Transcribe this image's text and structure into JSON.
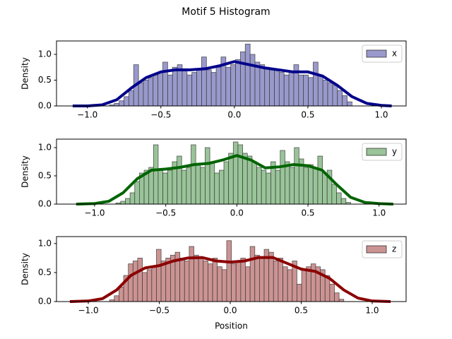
{
  "title": "Motif 5 Histogram",
  "chart_data": [
    {
      "type": "histogram",
      "ylabel": "Density",
      "name": "x",
      "color": "#9999cc",
      "line_color": "#00008b",
      "legend": "upper right",
      "bins": [
        -0.85,
        -0.817,
        -0.784,
        -0.751,
        -0.718,
        -0.685,
        -0.652,
        -0.619,
        -0.586,
        -0.553,
        -0.52,
        -0.487,
        -0.454,
        -0.421,
        -0.388,
        -0.355,
        -0.322,
        -0.289,
        -0.256,
        -0.223,
        -0.19,
        -0.157,
        -0.124,
        -0.091,
        -0.058,
        -0.025,
        0.008,
        0.041,
        0.074,
        0.107,
        0.14,
        0.173,
        0.206,
        0.239,
        0.272,
        0.305,
        0.338,
        0.371,
        0.404,
        0.437,
        0.47,
        0.503,
        0.536,
        0.569,
        0.602,
        0.635,
        0.668,
        0.701,
        0.734,
        0.767,
        0.8
      ],
      "values": [
        0.02,
        0.05,
        0.1,
        0.18,
        0.3,
        0.8,
        0.45,
        0.5,
        0.55,
        0.6,
        0.65,
        0.85,
        0.6,
        0.75,
        0.8,
        0.7,
        0.6,
        0.65,
        0.7,
        0.95,
        0.7,
        0.65,
        0.75,
        0.95,
        0.75,
        0.8,
        0.9,
        1.05,
        1.2,
        1.0,
        0.85,
        0.8,
        0.75,
        0.7,
        0.7,
        0.65,
        0.6,
        0.65,
        0.8,
        0.6,
        0.6,
        0.55,
        0.85,
        0.6,
        0.5,
        0.45,
        0.4,
        0.3,
        0.2,
        0.08
      ],
      "kde": {
        "x": [
          -1.1,
          -1.0,
          -0.9,
          -0.8,
          -0.7,
          -0.6,
          -0.5,
          -0.4,
          -0.3,
          -0.2,
          -0.1,
          0.0,
          0.1,
          0.2,
          0.3,
          0.4,
          0.5,
          0.6,
          0.7,
          0.8,
          0.9,
          1.0,
          1.07
        ],
        "values": [
          0,
          0,
          0.02,
          0.12,
          0.35,
          0.55,
          0.66,
          0.7,
          0.7,
          0.72,
          0.78,
          0.86,
          0.8,
          0.74,
          0.7,
          0.66,
          0.66,
          0.58,
          0.4,
          0.18,
          0.05,
          0.01,
          0
        ]
      },
      "xlim": [
        -1.21,
        1.168
      ],
      "ylim": [
        0,
        1.26
      ],
      "xticks": [
        {
          "value": -1.0,
          "label": "−1.0"
        },
        {
          "value": -0.5,
          "label": "−0.5"
        },
        {
          "value": 0.0,
          "label": "0.0"
        },
        {
          "value": 0.5,
          "label": "0.5"
        },
        {
          "value": 1.0,
          "label": "1.0"
        }
      ],
      "yticks": [
        {
          "value": 0,
          "label": "0.0"
        },
        {
          "value": 0.5,
          "label": "0.5"
        },
        {
          "value": 1.0,
          "label": "1.0"
        }
      ]
    },
    {
      "type": "histogram",
      "ylabel": "Density",
      "name": "y",
      "color": "#99c499",
      "line_color": "#006400",
      "legend": "upper right",
      "bins": [
        -0.85,
        -0.817,
        -0.784,
        -0.751,
        -0.718,
        -0.685,
        -0.652,
        -0.619,
        -0.586,
        -0.553,
        -0.52,
        -0.487,
        -0.454,
        -0.421,
        -0.388,
        -0.355,
        -0.322,
        -0.289,
        -0.256,
        -0.223,
        -0.19,
        -0.157,
        -0.124,
        -0.091,
        -0.058,
        -0.025,
        0.008,
        0.041,
        0.074,
        0.107,
        0.14,
        0.173,
        0.206,
        0.239,
        0.272,
        0.305,
        0.338,
        0.371,
        0.404,
        0.437,
        0.47,
        0.503,
        0.536,
        0.569,
        0.602,
        0.635,
        0.668,
        0.701,
        0.734,
        0.767,
        0.8
      ],
      "values": [
        0.02,
        0.05,
        0.1,
        0.2,
        0.4,
        0.55,
        0.6,
        0.65,
        1.05,
        0.6,
        0.55,
        0.6,
        0.75,
        0.85,
        0.6,
        0.65,
        1.05,
        0.7,
        0.65,
        1.0,
        0.75,
        0.55,
        0.6,
        0.75,
        0.9,
        1.1,
        1.05,
        0.9,
        0.85,
        0.75,
        0.65,
        0.6,
        0.55,
        0.75,
        0.6,
        0.95,
        0.75,
        0.65,
        1.0,
        0.8,
        0.65,
        0.7,
        0.65,
        0.85,
        0.55,
        0.6,
        0.35,
        0.2,
        0.1,
        0.03
      ],
      "kde": {
        "x": [
          -1.13,
          -1.0,
          -0.9,
          -0.8,
          -0.7,
          -0.6,
          -0.5,
          -0.4,
          -0.3,
          -0.2,
          -0.1,
          0.0,
          0.1,
          0.2,
          0.3,
          0.4,
          0.5,
          0.6,
          0.7,
          0.8,
          0.9,
          1.0,
          1.1
        ],
        "values": [
          0,
          0.01,
          0.05,
          0.2,
          0.45,
          0.6,
          0.62,
          0.65,
          0.7,
          0.72,
          0.78,
          0.86,
          0.78,
          0.64,
          0.66,
          0.7,
          0.68,
          0.6,
          0.35,
          0.12,
          0.03,
          0.01,
          0
        ]
      },
      "xlim": [
        -1.268,
        1.19
      ],
      "ylim": [
        0,
        1.15
      ],
      "xticks": [
        {
          "value": -1.0,
          "label": "−1.0"
        },
        {
          "value": -0.5,
          "label": "−0.5"
        },
        {
          "value": 0.0,
          "label": "0.0"
        },
        {
          "value": 0.5,
          "label": "0.5"
        },
        {
          "value": 1.0,
          "label": "1.0"
        }
      ],
      "yticks": [
        {
          "value": 0,
          "label": "0.0"
        },
        {
          "value": 0.5,
          "label": "0.5"
        },
        {
          "value": 1.0,
          "label": "1.0"
        }
      ]
    },
    {
      "type": "histogram",
      "ylabel": "Density",
      "xlabel": "Position",
      "name": "z",
      "color": "#cc9393",
      "line_color": "#8b0000",
      "legend": "upper right",
      "bins": [
        -0.85,
        -0.817,
        -0.784,
        -0.751,
        -0.718,
        -0.685,
        -0.652,
        -0.619,
        -0.586,
        -0.553,
        -0.52,
        -0.487,
        -0.454,
        -0.421,
        -0.388,
        -0.355,
        -0.322,
        -0.289,
        -0.256,
        -0.223,
        -0.19,
        -0.157,
        -0.124,
        -0.091,
        -0.058,
        -0.025,
        0.008,
        0.041,
        0.074,
        0.107,
        0.14,
        0.173,
        0.206,
        0.239,
        0.272,
        0.305,
        0.338,
        0.371,
        0.404,
        0.437,
        0.47,
        0.503,
        0.536,
        0.569,
        0.602,
        0.635,
        0.668,
        0.701,
        0.734,
        0.767,
        0.8
      ],
      "values": [
        0.03,
        0.1,
        0.25,
        0.45,
        0.65,
        0.7,
        0.75,
        0.5,
        0.55,
        0.6,
        0.9,
        0.7,
        0.75,
        0.8,
        0.85,
        0.75,
        0.7,
        0.95,
        0.8,
        0.75,
        0.7,
        0.65,
        0.75,
        0.6,
        0.55,
        1.05,
        0.65,
        0.7,
        0.75,
        0.6,
        0.95,
        0.8,
        0.75,
        0.9,
        0.85,
        0.7,
        0.75,
        0.6,
        0.55,
        0.7,
        0.3,
        0.55,
        0.6,
        0.65,
        0.6,
        0.55,
        0.45,
        0.3,
        0.15,
        0.04
      ],
      "kde": {
        "x": [
          -1.13,
          -1.0,
          -0.9,
          -0.8,
          -0.7,
          -0.6,
          -0.5,
          -0.4,
          -0.3,
          -0.2,
          -0.1,
          0.0,
          0.1,
          0.2,
          0.3,
          0.4,
          0.5,
          0.6,
          0.7,
          0.8,
          0.9,
          1.0,
          1.13
        ],
        "values": [
          0,
          0.01,
          0.05,
          0.2,
          0.45,
          0.58,
          0.62,
          0.7,
          0.75,
          0.76,
          0.7,
          0.68,
          0.7,
          0.76,
          0.76,
          0.66,
          0.56,
          0.52,
          0.4,
          0.2,
          0.06,
          0.01,
          0
        ]
      },
      "xlim": [
        -1.224,
        1.239
      ],
      "ylim": [
        0,
        1.12
      ],
      "xticks": [
        {
          "value": -1.0,
          "label": "−1.0"
        },
        {
          "value": -0.5,
          "label": "−0.5"
        },
        {
          "value": 0.0,
          "label": "0.0"
        },
        {
          "value": 0.5,
          "label": "0.5"
        },
        {
          "value": 1.0,
          "label": "1.0"
        }
      ],
      "yticks": [
        {
          "value": 0,
          "label": "0.0"
        },
        {
          "value": 0.5,
          "label": "0.5"
        },
        {
          "value": 1.0,
          "label": "1.0"
        }
      ]
    }
  ]
}
